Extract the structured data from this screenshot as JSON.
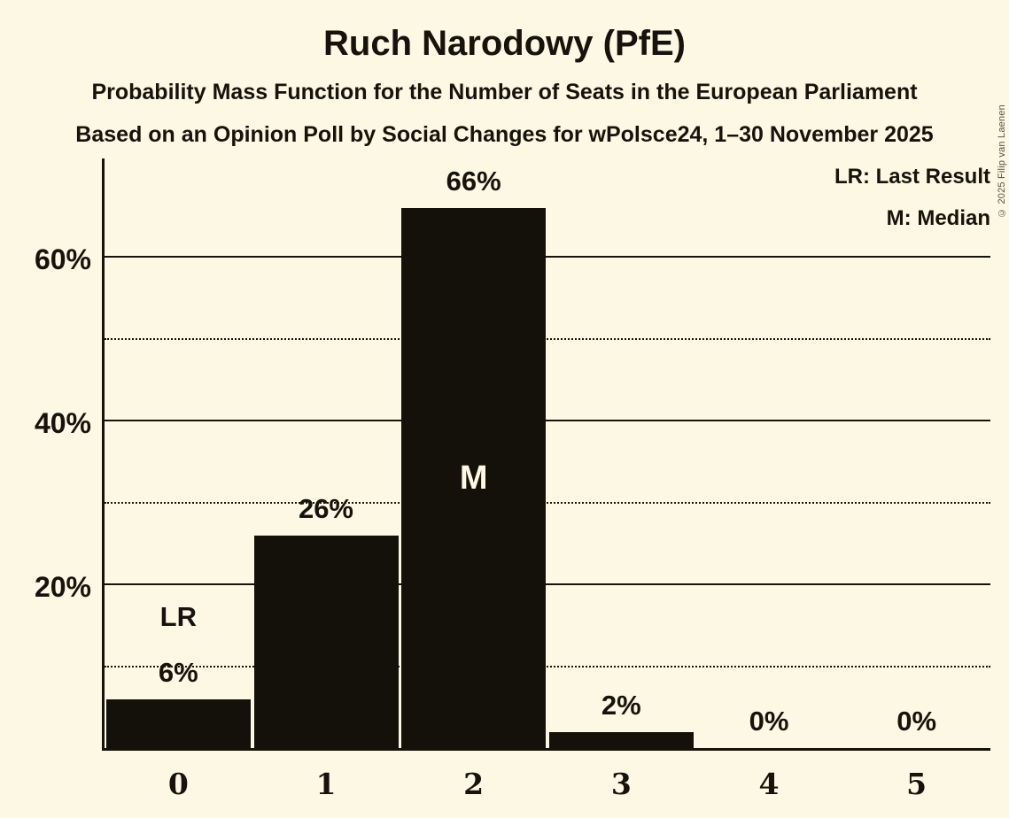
{
  "header": {
    "title": "Ruch Narodowy (PfE)",
    "subtitle1": "Probability Mass Function for the Number of Seats in the European Parliament",
    "subtitle2": "Based on an Opinion Poll by Social Changes for wPolsce24, 1–30 November 2025"
  },
  "legend": {
    "lr": "LR: Last Result",
    "m": "M: Median"
  },
  "copyright": "© 2025 Filip van Laenen",
  "colors": {
    "background": "#fdf8e3",
    "bar": "#131109",
    "text": "#16130c",
    "annotation_inside": "#fdf8e3"
  },
  "chart_data": {
    "type": "bar",
    "title": "Ruch Narodowy (PfE)",
    "categories": [
      "0",
      "1",
      "2",
      "3",
      "4",
      "5"
    ],
    "values": [
      6,
      26,
      66,
      2,
      0,
      0
    ],
    "bar_labels": [
      "6%",
      "26%",
      "66%",
      "2%",
      "0%",
      "0%"
    ],
    "annotations": [
      {
        "index": 0,
        "text": "LR",
        "meaning": "Last Result",
        "placement": "above"
      },
      {
        "index": 2,
        "text": "M",
        "meaning": "Median",
        "placement": "inside"
      }
    ],
    "ylim": [
      0,
      72
    ],
    "y_ticks": [
      {
        "value": 20,
        "label": "20%"
      },
      {
        "value": 40,
        "label": "40%"
      },
      {
        "value": 60,
        "label": "60%"
      }
    ],
    "gridlines_solid": [
      20,
      40,
      60
    ],
    "gridlines_dotted": [
      10,
      30,
      50
    ],
    "grid": true,
    "legend_position": "top-right"
  }
}
